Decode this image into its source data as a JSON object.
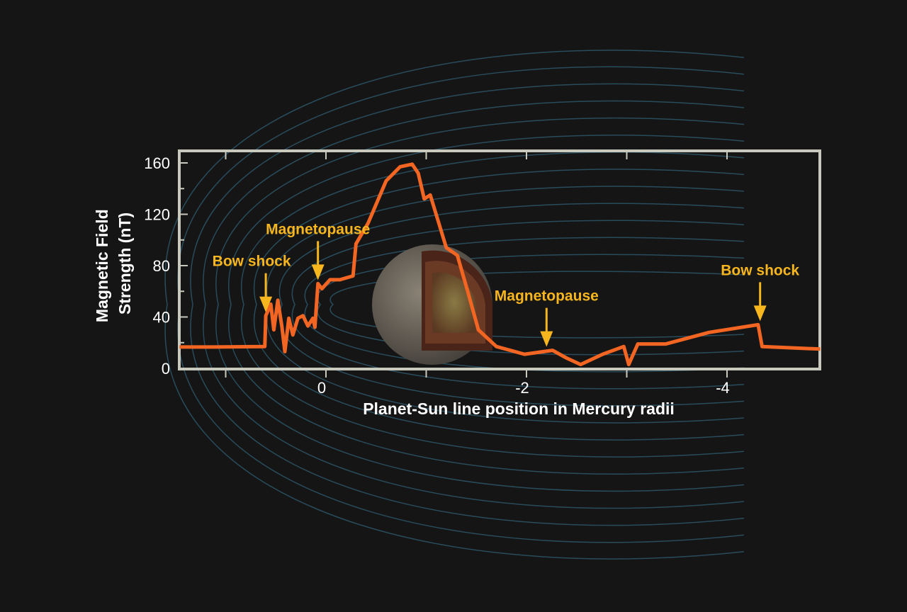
{
  "chart_data": {
    "type": "line",
    "title": "",
    "xlabel": "Planet-Sun line position in Mercury radii",
    "ylabel": "Magnetic Field Strength (nT)",
    "ylabel_lines": [
      "Magnetic Field",
      "Strength (nT)"
    ],
    "xlim": [
      1.46,
      -4.93
    ],
    "ylim": [
      0,
      170
    ],
    "x_reversed": true,
    "x_ticks": [
      0,
      -2,
      -4
    ],
    "x_tick_labels": [
      "0",
      "-2",
      "-4"
    ],
    "x_minor_ticks": [
      1,
      -1,
      -3
    ],
    "y_ticks": [
      0,
      40,
      80,
      120,
      160
    ],
    "y_tick_labels": [
      "0",
      "40",
      "80",
      "120",
      "160"
    ],
    "grid": false,
    "colors": {
      "line": "#f26522",
      "annotation": "#f7b51e",
      "frame": "#c9c8bd",
      "field_lines": "#2e5a6e",
      "background": "#151515"
    },
    "series": [
      {
        "x": [
          1.46,
          1.13,
          0.61,
          0.6,
          0.55,
          0.52,
          0.48,
          0.44,
          0.41,
          0.37,
          0.33,
          0.28,
          0.23,
          0.18,
          0.13,
          0.11,
          0.08,
          0.04,
          -0.04,
          -0.14,
          -0.27,
          -0.3,
          -0.42,
          -0.6,
          -0.74,
          -0.86,
          -0.92,
          -0.98,
          -1.04,
          -1.2,
          -1.31,
          -1.41,
          -1.52,
          -1.7,
          -1.98,
          -2.26,
          -2.4,
          -2.54,
          -2.76,
          -2.97,
          -3.02,
          -3.11,
          -3.39,
          -3.82,
          -4.31,
          -4.35,
          -4.93
        ],
        "y": [
          16.6,
          16.6,
          17,
          41,
          50,
          30,
          53,
          33,
          13,
          39,
          26,
          39,
          41,
          33,
          39,
          32,
          66,
          62,
          69,
          69,
          72,
          97,
          113,
          146,
          157,
          159,
          152,
          132,
          135,
          94,
          88,
          61,
          30,
          17,
          11,
          14,
          8,
          3,
          11,
          17,
          3,
          19,
          19,
          28,
          34,
          17,
          15
        ]
      }
    ],
    "annotations": [
      {
        "text": "Bow shock",
        "x": 0.6,
        "y": 41
      },
      {
        "text": "Magnetopause",
        "x": 0.08,
        "y": 66
      },
      {
        "text": "Magnetopause",
        "x": -2.2,
        "y": 14
      },
      {
        "text": "Bow shock",
        "x": -4.33,
        "y": 34
      }
    ]
  }
}
